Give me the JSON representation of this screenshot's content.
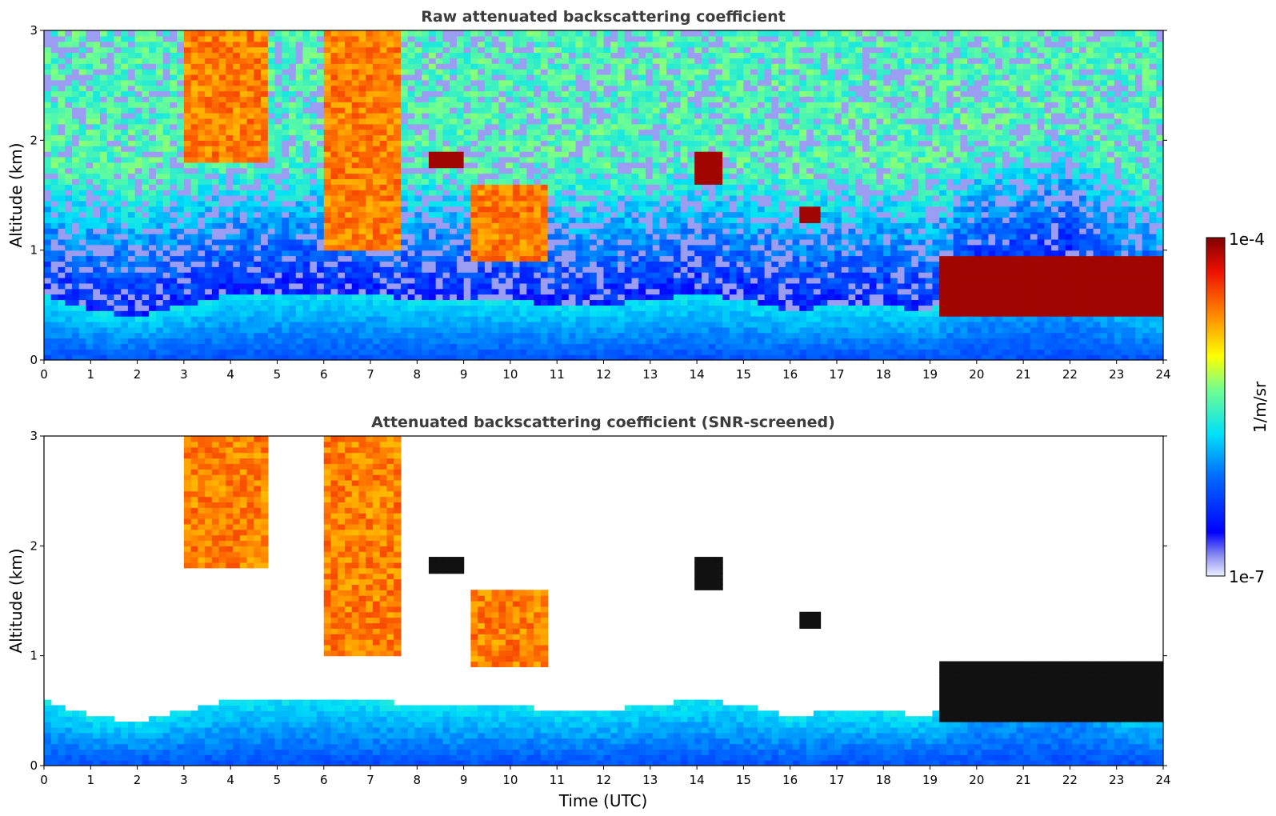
{
  "figure": {
    "colorbar": {
      "max_label": "1e-4",
      "min_label": "1e-7",
      "unit_label": "1/m/sr",
      "colormap": "jet (white → blue → cyan → yellow → red → dark red)"
    }
  },
  "chart_data": [
    {
      "type": "heatmap",
      "title": "Raw attenuated backscattering coefficient",
      "xlabel": "",
      "ylabel": "Altitude (km)",
      "xlim": [
        0,
        24
      ],
      "ylim": [
        0,
        3
      ],
      "xticks": [
        "0",
        "1",
        "2",
        "3",
        "4",
        "5",
        "6",
        "7",
        "8",
        "9",
        "10",
        "11",
        "12",
        "13",
        "14",
        "15",
        "16",
        "17",
        "18",
        "19",
        "20",
        "21",
        "22",
        "23",
        "24"
      ],
      "yticks": [
        "0",
        "1",
        "2",
        "3"
      ],
      "boundary_layer_top_km": [
        [
          0,
          0.6
        ],
        [
          1,
          0.45
        ],
        [
          2,
          0.4
        ],
        [
          3,
          0.5
        ],
        [
          4,
          0.6
        ],
        [
          5,
          0.62
        ],
        [
          6,
          0.62
        ],
        [
          7,
          0.6
        ],
        [
          8,
          0.55
        ],
        [
          9,
          0.55
        ],
        [
          10,
          0.55
        ],
        [
          11,
          0.5
        ],
        [
          12,
          0.5
        ],
        [
          13,
          0.55
        ],
        [
          14,
          0.6
        ],
        [
          15,
          0.55
        ],
        [
          16,
          0.45
        ],
        [
          17,
          0.5
        ],
        [
          18,
          0.5
        ],
        [
          19,
          0.45
        ],
        [
          20,
          0.75
        ],
        [
          21,
          0.8
        ],
        [
          22,
          0.95
        ],
        [
          23,
          0.55
        ],
        [
          24,
          0.45
        ]
      ],
      "cloud_features": [
        {
          "x": [
            3.0,
            4.8
          ],
          "alt": [
            1.8,
            3.0
          ],
          "level": "high"
        },
        {
          "x": [
            6.0,
            7.7
          ],
          "alt": [
            1.0,
            3.0
          ],
          "level": "high"
        },
        {
          "x": [
            9.2,
            10.8
          ],
          "alt": [
            0.9,
            1.6
          ],
          "level": "high"
        },
        {
          "x": [
            8.3,
            9.0
          ],
          "alt": [
            1.75,
            1.9
          ],
          "level": "max"
        },
        {
          "x": [
            13.9,
            14.5
          ],
          "alt": [
            1.6,
            1.9
          ],
          "level": "max"
        },
        {
          "x": [
            16.2,
            16.6
          ],
          "alt": [
            1.25,
            1.4
          ],
          "level": "max"
        },
        {
          "x": [
            19.2,
            24.0
          ],
          "alt": [
            0.4,
            0.95
          ],
          "level": "max"
        }
      ]
    },
    {
      "type": "heatmap",
      "title": "Attenuated backscattering coefficient (SNR-screened)",
      "xlabel": "Time (UTC)",
      "ylabel": "Altitude (km)",
      "xlim": [
        0,
        24
      ],
      "ylim": [
        0,
        3
      ],
      "xticks": [
        "0",
        "1",
        "2",
        "3",
        "4",
        "5",
        "6",
        "7",
        "8",
        "9",
        "10",
        "11",
        "12",
        "13",
        "14",
        "15",
        "16",
        "17",
        "18",
        "19",
        "20",
        "21",
        "22",
        "23",
        "24"
      ],
      "yticks": [
        "0",
        "1",
        "2",
        "3"
      ],
      "screened_above_boundary_layer": true
    }
  ]
}
